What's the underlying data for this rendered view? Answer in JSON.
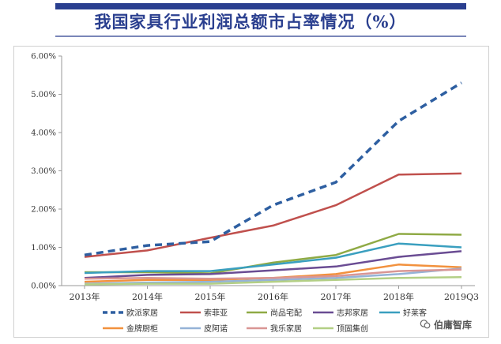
{
  "title": "我国家具行业利润总额市占率情况（%）",
  "watermark": "伯庸智库",
  "chart_data": {
    "type": "line",
    "title": "我国家具行业利润总额市占率情况（%）",
    "xlabel": "",
    "ylabel": "",
    "categories": [
      "2013年",
      "2014年",
      "2015年",
      "2016年",
      "2017年",
      "2018年",
      "2019Q3"
    ],
    "ylim": [
      0,
      6
    ],
    "y_ticks": [
      "0.00%",
      "1.00%",
      "2.00%",
      "3.00%",
      "4.00%",
      "5.00%",
      "6.00%"
    ],
    "grid": false,
    "legend_position": "bottom",
    "series": [
      {
        "name": "欧派家居",
        "color": "#2e5fa1",
        "dashed": true,
        "values": [
          0.8,
          1.05,
          1.15,
          2.1,
          2.7,
          4.3,
          5.3
        ]
      },
      {
        "name": "索菲亚",
        "color": "#c0504d",
        "dashed": false,
        "values": [
          0.75,
          0.92,
          1.25,
          1.57,
          2.1,
          2.9,
          2.93
        ]
      },
      {
        "name": "尚品宅配",
        "color": "#8faa45",
        "dashed": false,
        "values": [
          0.35,
          0.35,
          0.32,
          0.6,
          0.8,
          1.35,
          1.33
        ]
      },
      {
        "name": "志邦家居",
        "color": "#6a4c93",
        "dashed": false,
        "values": [
          0.2,
          0.28,
          0.3,
          0.4,
          0.5,
          0.75,
          0.9
        ]
      },
      {
        "name": "好莱客",
        "color": "#3a9fbf",
        "dashed": false,
        "values": [
          0.33,
          0.38,
          0.38,
          0.55,
          0.73,
          1.1,
          1.0
        ]
      },
      {
        "name": "金牌厨柜",
        "color": "#f2913d",
        "dashed": false,
        "values": [
          0.1,
          0.15,
          0.15,
          0.2,
          0.3,
          0.55,
          0.48
        ]
      },
      {
        "name": "皮阿诺",
        "color": "#95b3d7",
        "dashed": false,
        "values": [
          0.05,
          0.08,
          0.1,
          0.15,
          0.2,
          0.3,
          0.45
        ]
      },
      {
        "name": "我乐家居",
        "color": "#d99694",
        "dashed": false,
        "values": [
          0.18,
          0.2,
          0.18,
          0.2,
          0.25,
          0.38,
          0.42
        ]
      },
      {
        "name": "顶固集创",
        "color": "#b3cf85",
        "dashed": false,
        "values": [
          0.03,
          0.05,
          0.05,
          0.1,
          0.15,
          0.2,
          0.22
        ]
      }
    ]
  }
}
